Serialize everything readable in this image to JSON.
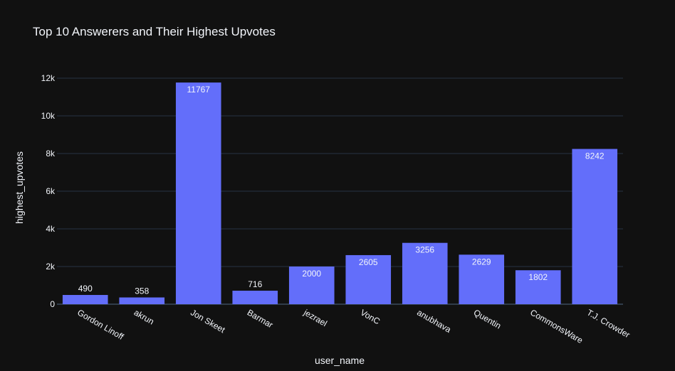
{
  "chart_data": {
    "type": "bar",
    "title": "Top 10 Answerers and Their Highest Upvotes",
    "xlabel": "user_name",
    "ylabel": "highest_upvotes",
    "categories": [
      "Gordon Linoff",
      "akrun",
      "Jon Skeet",
      "Barmar",
      "jezrael",
      "VonC",
      "anubhava",
      "Quentin",
      "CommonsWare",
      "T.J. Crowder"
    ],
    "values": [
      490,
      358,
      11767,
      716,
      2000,
      2605,
      3256,
      2629,
      1802,
      8242
    ],
    "data_labels": [
      "490",
      "358",
      "11767",
      "716",
      "2000",
      "2605",
      "3256",
      "2629",
      "1802",
      "8242"
    ],
    "ylim": [
      0,
      12300
    ],
    "yticks": [
      0,
      2000,
      4000,
      6000,
      8000,
      10000,
      12000
    ],
    "ytick_labels": [
      "0",
      "2k",
      "4k",
      "6k",
      "8k",
      "10k",
      "12k"
    ],
    "grid": true,
    "legend": "none",
    "colors": {
      "bar": "#636efa",
      "background": "#111111",
      "text": "#f2f5fa",
      "grid": "#283442",
      "zeroline": "#506784"
    }
  }
}
